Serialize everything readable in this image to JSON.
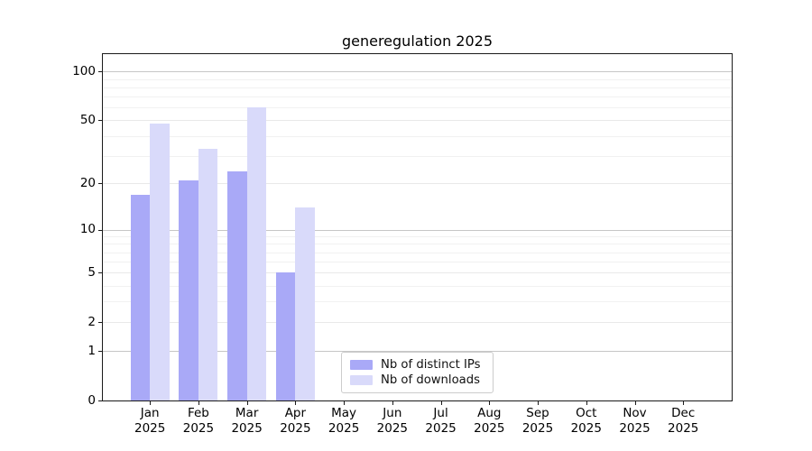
{
  "title": "generegulation 2025",
  "legend": {
    "items": [
      {
        "label": "Nb of distinct IPs",
        "color": "#a9a9f7"
      },
      {
        "label": "Nb of downloads",
        "color": "#d9dafa"
      }
    ]
  },
  "colors": {
    "ips_bar": "#a9a9f7",
    "downloads_bar": "#d9dafa",
    "grid_decade": "#c6c6c6",
    "grid_labeled": "#e9e9e9",
    "grid_minor": "#f1f1f1",
    "spine": "#1a1a1a",
    "text": "#000000",
    "background": "#ffffff"
  },
  "chart_data": {
    "type": "bar",
    "title": "generegulation 2025",
    "categories": [
      "Jan 2025",
      "Feb 2025",
      "Mar 2025",
      "Apr 2025",
      "May 2025",
      "Jun 2025",
      "Jul 2025",
      "Aug 2025",
      "Sep 2025",
      "Oct 2025",
      "Nov 2025",
      "Dec 2025"
    ],
    "series": [
      {
        "name": "Nb of distinct IPs",
        "color": "#a9a9f7",
        "values": [
          17,
          21,
          24,
          5,
          0,
          0,
          0,
          0,
          0,
          0,
          0,
          0
        ]
      },
      {
        "name": "Nb of downloads",
        "color": "#d9dafa",
        "values": [
          48,
          33,
          60,
          14,
          0,
          0,
          0,
          0,
          0,
          0,
          0,
          0
        ]
      }
    ],
    "xlabel": "",
    "ylabel": "",
    "yscale": "log1p",
    "yticks": [
      0,
      1,
      2,
      5,
      10,
      20,
      50,
      100
    ],
    "minor_yticks": [
      3,
      4,
      6,
      7,
      8,
      9,
      30,
      40,
      60,
      70,
      80,
      90
    ],
    "decade_yticks": [
      1,
      10,
      100
    ],
    "ylim": [
      0,
      128
    ],
    "grid": true,
    "legend_position": "lower center inside"
  }
}
